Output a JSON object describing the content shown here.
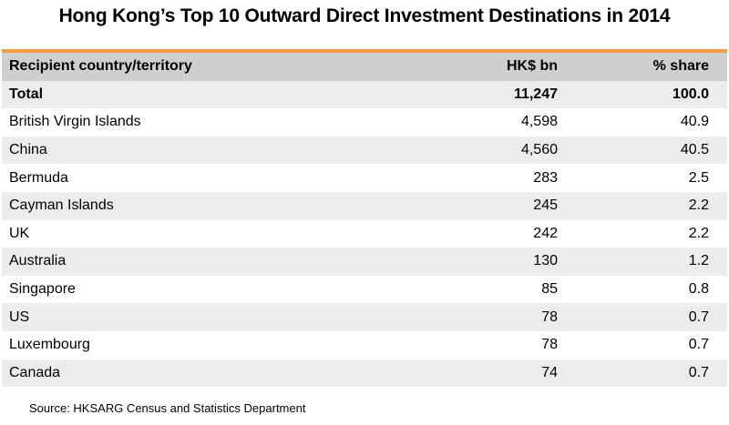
{
  "title": "Hong Kong’s Top 10 Outward Direct Investment Destinations in 2014",
  "colors": {
    "accent": "#f39a45",
    "header_bg": "#cfcfcf",
    "stripe_bg": "#ececec"
  },
  "chart_data": {
    "type": "table",
    "columns": [
      "Recipient  country/territory",
      "HK$ bn",
      "% share"
    ],
    "total": {
      "name": "Total",
      "value": "11,247",
      "share": "100.0"
    },
    "rows": [
      {
        "name": "British Virgin Islands",
        "value": "4,598",
        "share": "40.9"
      },
      {
        "name": "China",
        "value": "4,560",
        "share": "40.5"
      },
      {
        "name": "Bermuda",
        "value": "283",
        "share": "2.5"
      },
      {
        "name": "Cayman Islands",
        "value": "245",
        "share": "2.2"
      },
      {
        "name": "UK",
        "value": "242",
        "share": "2.2"
      },
      {
        "name": "Australia",
        "value": "130",
        "share": "1.2"
      },
      {
        "name": "Singapore",
        "value": "85",
        "share": "0.8"
      },
      {
        "name": "US",
        "value": "78",
        "share": "0.7"
      },
      {
        "name": "Luxembourg",
        "value": "78",
        "share": "0.7"
      },
      {
        "name": "Canada",
        "value": "74",
        "share": "0.7"
      }
    ]
  },
  "source": "Source: HKSARG Census and Statistics Department"
}
